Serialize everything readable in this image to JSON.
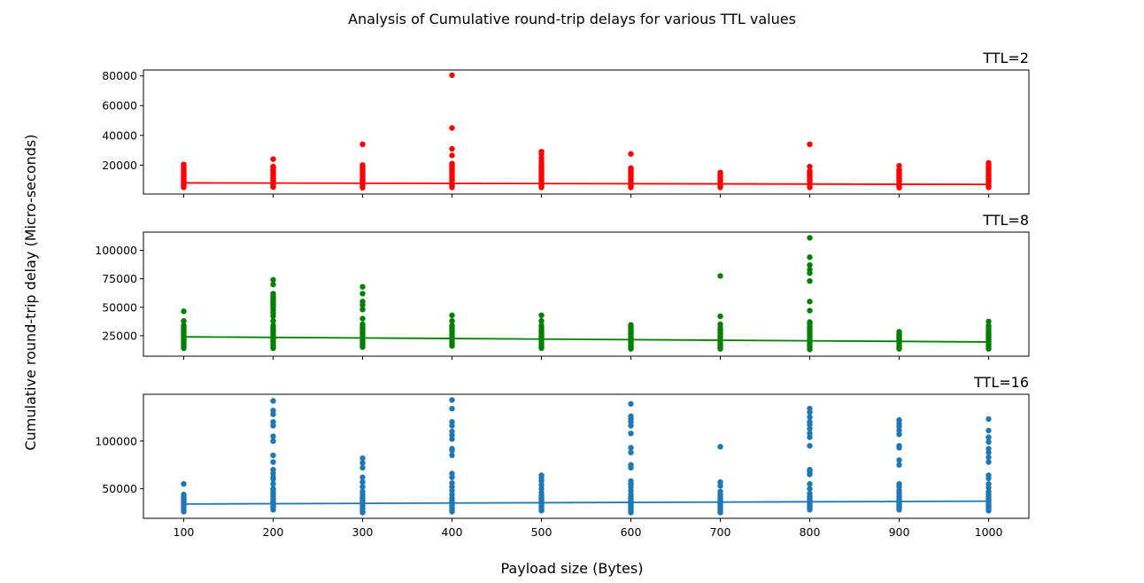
{
  "figure": {
    "title": "Analysis of Cumulative round-trip delays for various TTL values",
    "xlabel": "Payload size (Bytes)",
    "ylabel": "Cumulative round-trip delay (Micro-seconds)"
  },
  "chart_data": [
    {
      "type": "scatter",
      "title": "TTL=2",
      "color": "#ff0000",
      "xlim": [
        55,
        1045
      ],
      "ylim": [
        500,
        84000
      ],
      "x_ticks": [
        100,
        200,
        300,
        400,
        500,
        600,
        700,
        800,
        900,
        1000
      ],
      "y_ticks": [
        20000,
        40000,
        60000,
        80000
      ],
      "points": {
        "100": [
          5000,
          5800,
          6600,
          7400,
          8200,
          9000,
          9800,
          10600,
          11400,
          12200,
          13000,
          13800,
          14600,
          15400,
          16200,
          17000,
          18000,
          19000,
          20400
        ],
        "200": [
          5200,
          6000,
          6800,
          7600,
          8400,
          9200,
          10000,
          10800,
          11600,
          12400,
          13200,
          14000,
          15000,
          16000,
          17000,
          18000,
          19000,
          24000
        ],
        "300": [
          4800,
          5600,
          6400,
          7200,
          8000,
          8800,
          9600,
          10400,
          11200,
          12000,
          13000,
          14000,
          15000,
          16000,
          17000,
          18000,
          19000,
          20000,
          34000
        ],
        "400": [
          5000,
          6000,
          7000,
          8000,
          9000,
          10000,
          11000,
          12000,
          13000,
          14000,
          15000,
          16000,
          17000,
          18000,
          19000,
          20000,
          21000,
          26500,
          31000,
          45000,
          80500
        ],
        "500": [
          5000,
          6000,
          7000,
          8000,
          9000,
          10000,
          11000,
          12000,
          13000,
          14000,
          15000,
          16000,
          17000,
          18000,
          19000,
          20000,
          21000,
          23000,
          25000,
          27500,
          29000
        ],
        "600": [
          5000,
          6000,
          7000,
          8000,
          9000,
          10000,
          11000,
          12000,
          13000,
          14000,
          15000,
          16000,
          17000,
          18000,
          27500
        ],
        "700": [
          5000,
          6000,
          7000,
          8000,
          9000,
          10000,
          11000,
          12000,
          13000,
          14000,
          15000
        ],
        "800": [
          5000,
          6000,
          7000,
          8000,
          9000,
          10000,
          11000,
          12000,
          13000,
          14000,
          15000,
          16000,
          19000,
          34000
        ],
        "900": [
          4800,
          5600,
          6400,
          7200,
          8000,
          8800,
          9600,
          10400,
          11200,
          12000,
          13000,
          14000,
          15000,
          16000,
          17000,
          19500
        ],
        "1000": [
          5000,
          6000,
          7000,
          8000,
          9000,
          10000,
          11000,
          12000,
          13000,
          14000,
          15000,
          16000,
          17000,
          18000,
          19000,
          20000,
          21500
        ]
      },
      "trend": {
        "x": [
          100,
          1000
        ],
        "y": [
          8000,
          7000
        ]
      }
    },
    {
      "type": "scatter",
      "title": "TTL=8",
      "color": "#008000",
      "xlim": [
        55,
        1045
      ],
      "ylim": [
        7000,
        116000
      ],
      "x_ticks": [
        100,
        200,
        300,
        400,
        500,
        600,
        700,
        800,
        900,
        1000
      ],
      "y_ticks": [
        25000,
        50000,
        75000,
        100000
      ],
      "points": {
        "100": [
          14000,
          15500,
          17000,
          18500,
          20000,
          21500,
          23000,
          24500,
          26000,
          27500,
          29000,
          30500,
          32000,
          34000,
          38000,
          46500
        ],
        "200": [
          14000,
          16000,
          18000,
          20000,
          22000,
          24000,
          26000,
          28000,
          30000,
          32000,
          34000,
          38000,
          42000,
          45000,
          47500,
          50000,
          52000,
          54000,
          56000,
          58000,
          60000,
          62000,
          70000,
          74000
        ],
        "300": [
          15000,
          17000,
          19000,
          21000,
          23000,
          25000,
          27000,
          29000,
          31000,
          33000,
          35000,
          40000,
          48000,
          52000,
          55000,
          62000,
          68000
        ],
        "400": [
          16000,
          18000,
          20000,
          22000,
          24000,
          26000,
          28000,
          30000,
          32000,
          34000,
          38000,
          43000
        ],
        "500": [
          14000,
          16000,
          18000,
          20000,
          22000,
          24000,
          26000,
          28000,
          30000,
          32000,
          34000,
          38000,
          43000
        ],
        "600": [
          13500,
          15000,
          16500,
          18000,
          19500,
          21000,
          22500,
          24000,
          25500,
          27000,
          28500,
          30000,
          31500,
          33000,
          34500
        ],
        "700": [
          13500,
          15000,
          16500,
          18000,
          19500,
          21000,
          22500,
          24000,
          25500,
          27000,
          28500,
          30000,
          32000,
          35000,
          42000,
          77500
        ],
        "800": [
          13000,
          15000,
          17000,
          19000,
          21000,
          23000,
          25000,
          27000,
          29000,
          31000,
          33000,
          35000,
          37000,
          47000,
          55000,
          73000,
          80000,
          83000,
          87000,
          94000,
          111000
        ],
        "900": [
          13500,
          15000,
          16500,
          18000,
          19500,
          21000,
          22500,
          24000,
          25500,
          27000,
          28500
        ],
        "1000": [
          13500,
          15000,
          16500,
          18000,
          19500,
          21000,
          22500,
          24000,
          25500,
          27000,
          28500,
          30000,
          32000,
          34000,
          37500
        ]
      },
      "trend": {
        "x": [
          100,
          1000
        ],
        "y": [
          24000,
          19500
        ]
      }
    },
    {
      "type": "scatter",
      "title": "TTL=16",
      "color": "#1f77b4",
      "xlim": [
        55,
        1045
      ],
      "ylim": [
        19000,
        149000
      ],
      "x_ticks": [
        100,
        200,
        300,
        400,
        500,
        600,
        700,
        800,
        900,
        1000
      ],
      "y_ticks": [
        50000,
        100000
      ],
      "points": {
        "100": [
          26000,
          28000,
          30000,
          32000,
          34000,
          36000,
          38000,
          40000,
          42000,
          44000,
          55000
        ],
        "200": [
          28000,
          30000,
          32000,
          34000,
          36000,
          38000,
          40000,
          42000,
          44000,
          46000,
          48000,
          50000,
          55000,
          60000,
          62000,
          66000,
          70000,
          78000,
          85000,
          100000,
          105000,
          116000,
          120000,
          128000,
          132000,
          142000
        ],
        "300": [
          25000,
          27000,
          29000,
          31000,
          33000,
          35000,
          37000,
          39000,
          41000,
          44000,
          47000,
          52000,
          57000,
          62000,
          72000,
          77000,
          82000
        ],
        "400": [
          26000,
          28000,
          30000,
          32000,
          34000,
          36000,
          38000,
          40000,
          44000,
          48000,
          52000,
          56000,
          62000,
          66000,
          85000,
          90000,
          92000,
          102000,
          106000,
          110000,
          116000,
          120000,
          134000,
          143000
        ],
        "500": [
          27000,
          29000,
          31000,
          33000,
          35000,
          37000,
          39000,
          41000,
          43000,
          46000,
          50000,
          54000,
          58000,
          61000,
          64000
        ],
        "600": [
          25000,
          27000,
          29000,
          31000,
          33000,
          35000,
          37000,
          39000,
          41000,
          44000,
          48000,
          52000,
          55000,
          58000,
          72000,
          75000,
          88000,
          93000,
          108000,
          116000,
          120000,
          123000,
          126000,
          139000
        ],
        "700": [
          25000,
          27000,
          29000,
          31000,
          33000,
          35000,
          37000,
          39000,
          41000,
          44000,
          47000,
          53000,
          57000,
          94000
        ],
        "800": [
          28000,
          30000,
          32000,
          34000,
          36000,
          38000,
          40000,
          42000,
          45000,
          50000,
          55000,
          65000,
          68000,
          70000,
          95000,
          104000,
          108000,
          113000,
          117000,
          120000,
          125000,
          130000,
          134000
        ],
        "900": [
          28000,
          30000,
          32000,
          34000,
          36000,
          38000,
          40000,
          42000,
          45000,
          48000,
          52000,
          55000,
          75000,
          80000,
          93000,
          95000,
          107000,
          111000,
          115000,
          118000,
          122000
        ],
        "1000": [
          27000,
          29000,
          31000,
          33000,
          35000,
          37000,
          39000,
          41000,
          44000,
          47000,
          51000,
          55000,
          61000,
          64000,
          78000,
          83000,
          88000,
          92000,
          99000,
          104000,
          111000,
          123000
        ]
      },
      "trend": {
        "x": [
          100,
          1000
        ],
        "y": [
          34000,
          37000
        ]
      }
    }
  ]
}
